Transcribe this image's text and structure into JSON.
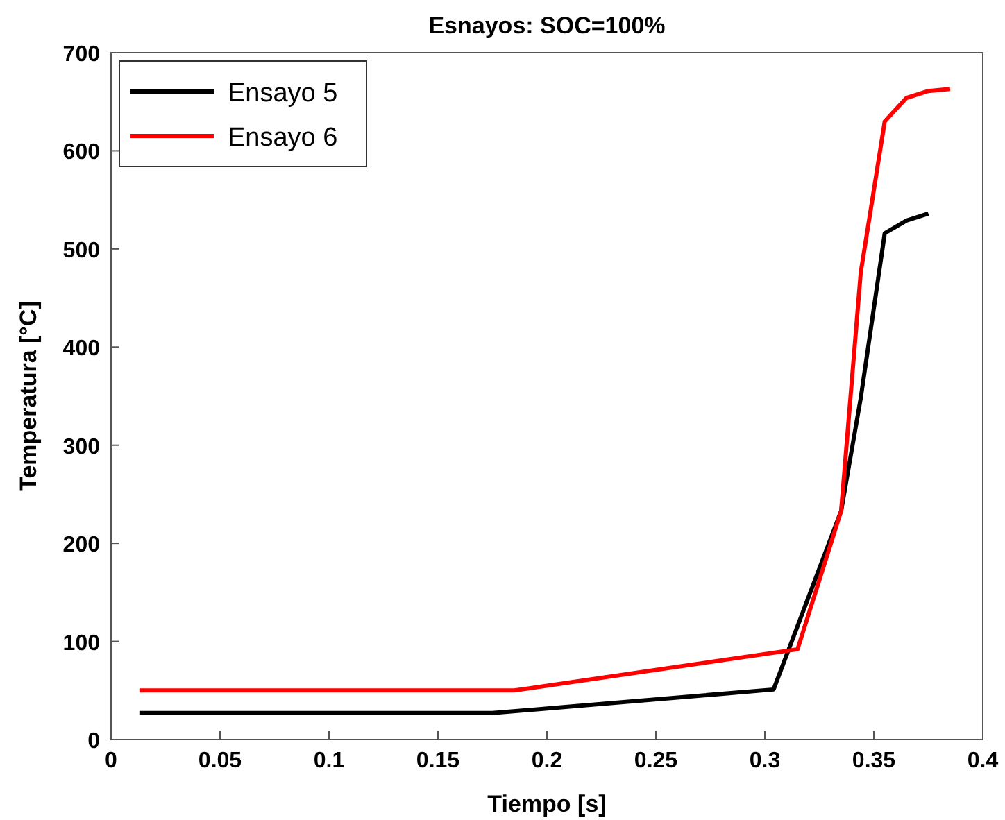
{
  "chart_data": {
    "type": "line",
    "title": "Esnayos:  SOC=100%",
    "xlabel": "Tiempo [s]",
    "ylabel": "Temperatura [°C]",
    "xlim": [
      0,
      0.4
    ],
    "ylim": [
      0,
      700
    ],
    "xticks": [
      0,
      0.05,
      0.1,
      0.15,
      0.2,
      0.25,
      0.3,
      0.35,
      0.4
    ],
    "yticks": [
      0,
      100,
      200,
      300,
      400,
      500,
      600,
      700
    ],
    "legend": "top left",
    "grid": false,
    "series": [
      {
        "name": "Ensayo 5",
        "color": "#000000",
        "x": [
          0.013,
          0.175,
          0.304,
          0.335,
          0.344,
          0.355,
          0.365,
          0.375
        ],
        "values": [
          27,
          27,
          51,
          233,
          348,
          516,
          529,
          536
        ]
      },
      {
        "name": "Ensayo 6",
        "color": "#ff0000",
        "x": [
          0.013,
          0.185,
          0.315,
          0.335,
          0.344,
          0.355,
          0.365,
          0.375,
          0.385
        ],
        "values": [
          50,
          50,
          92,
          233,
          476,
          630,
          654,
          661,
          663
        ]
      }
    ]
  }
}
